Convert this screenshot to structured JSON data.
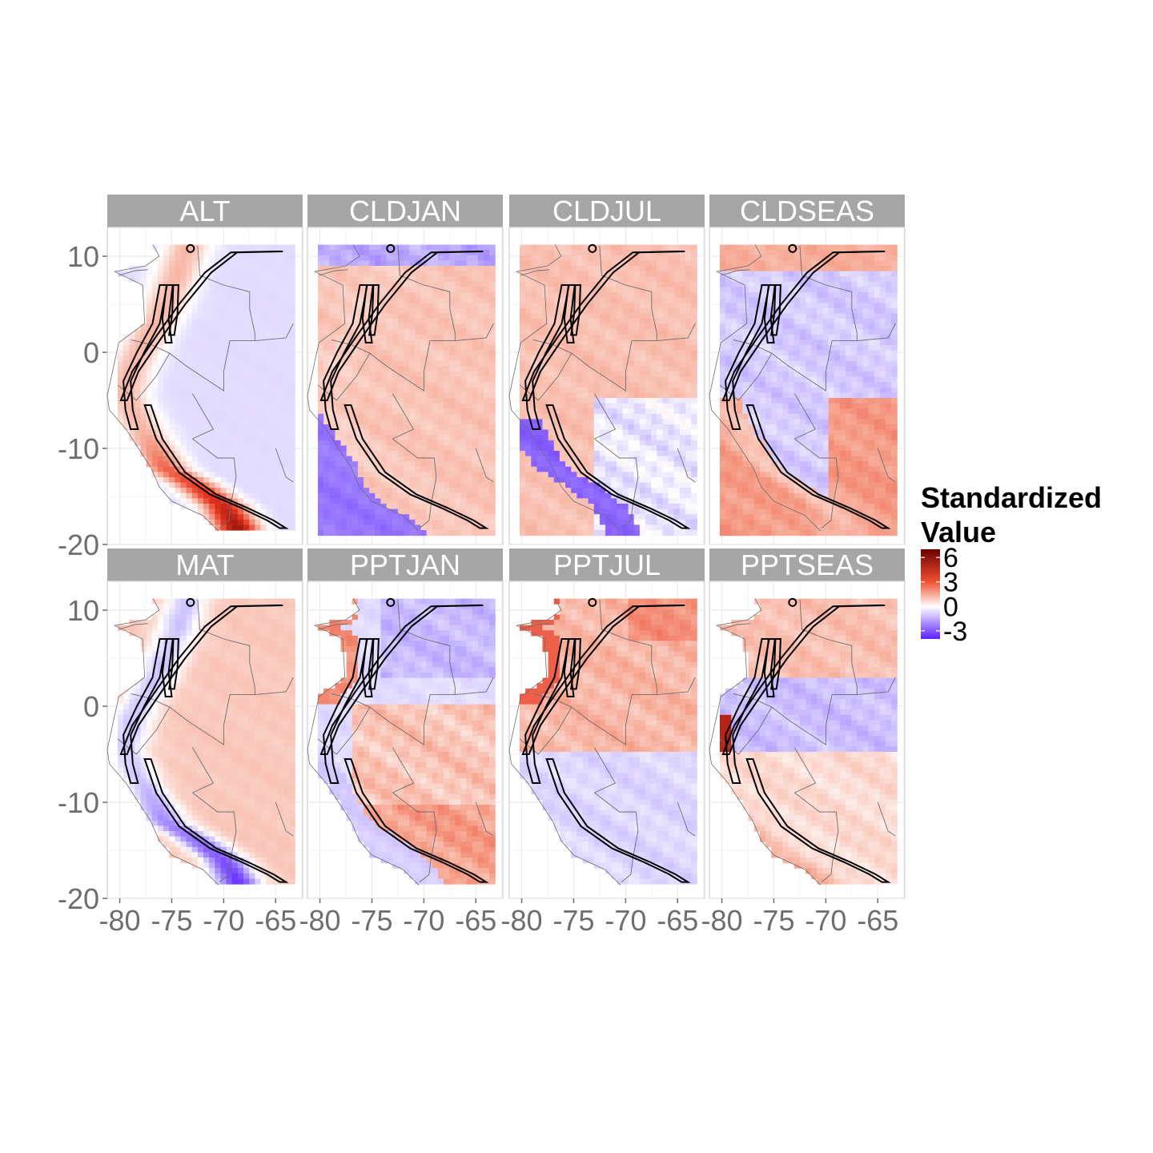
{
  "chart_data": {
    "type": "heatmap",
    "facets": [
      {
        "name": "ALT",
        "pattern": "altitude"
      },
      {
        "name": "CLDJAN",
        "pattern": "cloud_jan"
      },
      {
        "name": "CLDJUL",
        "pattern": "cloud_jul"
      },
      {
        "name": "CLDSEAS",
        "pattern": "cloud_seas"
      },
      {
        "name": "MAT",
        "pattern": "temperature"
      },
      {
        "name": "PPTJAN",
        "pattern": "precip_jan"
      },
      {
        "name": "PPTJUL",
        "pattern": "precip_jul"
      },
      {
        "name": "PPTSEAS",
        "pattern": "precip_seas"
      }
    ],
    "layout": {
      "rows": 2,
      "cols": 4
    },
    "x_ticks": [
      -80,
      -75,
      -70,
      -65
    ],
    "x_tick_labels": [
      "-80",
      "-75",
      "-70",
      "-65"
    ],
    "y_ticks": [
      10,
      0,
      -10,
      -20
    ],
    "y_tick_labels": [
      "10",
      "0",
      "-10",
      "-20"
    ],
    "xlim": [
      -81.2,
      -62.4
    ],
    "ylim": [
      -20,
      13
    ],
    "data_extent": {
      "lon": [
        -80.2,
        -63.3
      ],
      "lat": [
        -18.6,
        11.2
      ]
    },
    "grid": true,
    "legend": {
      "title_line1": "Standardized",
      "title_line2": "Value",
      "placement": "right",
      "ticks": [
        6,
        3,
        0,
        -3
      ],
      "tick_labels": [
        "6",
        "3",
        "0",
        "-3"
      ],
      "range": [
        -4,
        7
      ]
    },
    "colors": {
      "low": "#5b1fff",
      "mid": "#ffffff",
      "high": "#6b0000",
      "strip": "#a6a6a6",
      "panel_border": "#d9d9d9",
      "gridline": "#ebebeb",
      "border_line": "#6e6e6e",
      "cordillera_outline": "#000000"
    }
  }
}
